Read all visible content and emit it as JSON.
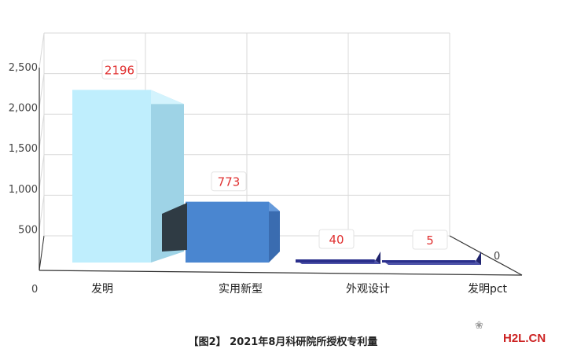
{
  "chart_data": {
    "type": "bar",
    "style": "3d",
    "categories": [
      "发明",
      "实用新型",
      "外观设计",
      "发明pct"
    ],
    "values": [
      2196,
      773,
      40,
      5
    ],
    "data_labels": [
      "2196",
      "773",
      "40",
      "5"
    ],
    "yticks": [
      "0",
      "500",
      "1,000",
      "1,500",
      "2,000",
      "2,500"
    ],
    "ylim": [
      0,
      2500
    ],
    "grid": true,
    "depth_axis_label": "0",
    "colors": {
      "bar_1": "#bfeefd",
      "bar_2": "#4a86d0",
      "bar_3": "#2a2f8c",
      "bar_4": "#2a2f8c",
      "data_label_color": "#e03030",
      "grid": "#d9d9d9",
      "axis": "#333333"
    }
  },
  "caption": "【图2】 2021年8月科研院所授权专利量",
  "watermark": "H2L.CN"
}
